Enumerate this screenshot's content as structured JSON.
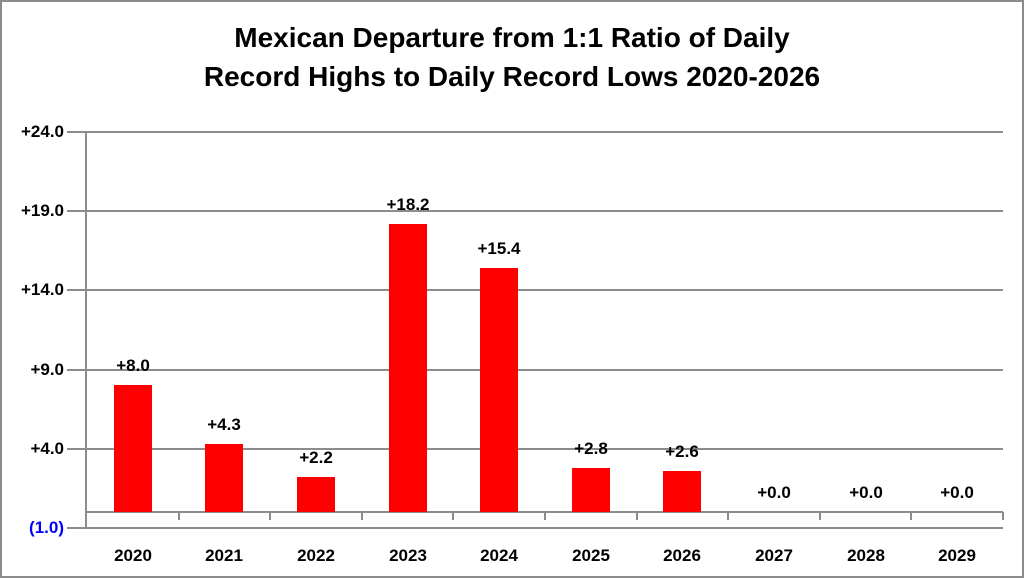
{
  "chart_data": {
    "type": "bar",
    "title": "Mexican Departure from 1:1 Ratio of Daily Record Highs to Daily Record Lows 2020-2026",
    "title_lines": [
      "Mexican Departure from 1:1 Ratio of Daily",
      "Record Highs to Daily Record Lows 2020-2026"
    ],
    "categories": [
      "2020",
      "2021",
      "2022",
      "2023",
      "2024",
      "2025",
      "2026",
      "2027",
      "2028",
      "2029"
    ],
    "values": [
      8.0,
      4.3,
      2.2,
      18.2,
      15.4,
      2.8,
      2.6,
      0.0,
      0.0,
      0.0
    ],
    "data_labels": [
      "+8.0",
      "+4.3",
      "+2.2",
      "+18.2",
      "+15.4",
      "+2.8",
      "+2.6",
      "+0.0",
      "+0.0",
      "+0.0"
    ],
    "xlabel": "",
    "ylabel": "",
    "y_axis": {
      "min": -1,
      "max": 24,
      "major_unit": 5,
      "ticks": [
        {
          "value": 24,
          "label": "+24.0",
          "color": "#000000"
        },
        {
          "value": 19,
          "label": "+19.0",
          "color": "#000000"
        },
        {
          "value": 14,
          "label": "+14.0",
          "color": "#000000"
        },
        {
          "value": 9,
          "label": "+9.0",
          "color": "#000000"
        },
        {
          "value": 4,
          "label": "+4.0",
          "color": "#000000"
        },
        {
          "value": -1,
          "label": "(1.0)",
          "color": "#0000ff"
        }
      ]
    },
    "baseline_value": 0,
    "grid": true,
    "legend_position": "none",
    "colors": {
      "bar": "#ff0000",
      "gridline": "#8c8c8c",
      "axis": "#8c8c8c",
      "label": "#000000",
      "background": "#ffffff"
    }
  }
}
